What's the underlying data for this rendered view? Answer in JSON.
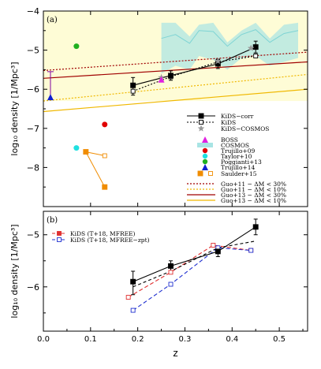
{
  "chart_data": [
    {
      "panel_label": "(a)",
      "type": "scatter",
      "ylabel": "log₁₀ density [1/Mpc³]",
      "xlim": [
        0.0,
        0.56
      ],
      "ylim": [
        -9.0,
        -4.0
      ],
      "yticks": [
        "−4",
        "−5",
        "−6",
        "−7",
        "−8"
      ],
      "shaded_region": {
        "y_above": -6.3,
        "color": "#fefcd6"
      },
      "cosmos_band": {
        "x": [
          0.25,
          0.28,
          0.31,
          0.33,
          0.36,
          0.39,
          0.42,
          0.45,
          0.48,
          0.51,
          0.54
        ],
        "upper": [
          -4.3,
          -4.3,
          -4.65,
          -4.35,
          -4.3,
          -4.8,
          -4.5,
          -4.3,
          -4.7,
          -4.35,
          -4.3
        ],
        "lower": [
          -5.6,
          -5.4,
          -5.5,
          -5.15,
          -5.25,
          -5.5,
          -5.2,
          -5.15,
          -5.4,
          -5.3,
          -5.2
        ],
        "color": "#a8e4e4"
      },
      "series": [
        {
          "name": "KiDS−corr",
          "style": "solid",
          "marker": "square-filled",
          "x": [
            0.19,
            0.27,
            0.37,
            0.45
          ],
          "y": [
            -5.9,
            -5.65,
            -5.35,
            -4.92
          ],
          "yerr_up": [
            0.2,
            0.12,
            0.12,
            0.15
          ],
          "yerr_down": [
            0.25,
            0.12,
            0.12,
            0.15
          ]
        },
        {
          "name": "KiDS",
          "style": "dotted",
          "marker": "square-open",
          "x": [
            0.19,
            0.27,
            0.37,
            0.45
          ],
          "y": [
            -6.05,
            -5.68,
            -5.3,
            -5.15
          ]
        },
        {
          "name": "KiDS−COSMOS",
          "marker": "star-gray",
          "x": [
            0.25,
            0.37,
            0.44
          ],
          "y": [
            -5.7,
            -5.28,
            -4.95
          ]
        },
        {
          "name": "BOSS",
          "marker": "triangle-magenta",
          "x": [
            0.25
          ],
          "y": [
            -5.75
          ]
        },
        {
          "name": "COSMOS",
          "marker": "band-cyan"
        },
        {
          "name": "Trujillo+09",
          "marker": "circle-red",
          "x": [
            0.13
          ],
          "y": [
            -6.9
          ]
        },
        {
          "name": "Taylor+10",
          "marker": "circle-cyan",
          "x": [
            0.07
          ],
          "y": [
            -7.5
          ]
        },
        {
          "name": "Poggianti+13",
          "marker": "circle-green",
          "x": [
            0.07
          ],
          "y": [
            -4.9
          ]
        },
        {
          "name": "Trujillo+14",
          "marker": "triangle-blue",
          "x": [
            0.015
          ],
          "y": [
            -6.2
          ],
          "yrange": [
            -6.2,
            -5.55
          ]
        },
        {
          "name": "Saulder+15",
          "marker": "square-orange",
          "x_filled": [
            0.09,
            0.13
          ],
          "y_filled": [
            -7.6,
            -8.5
          ],
          "x_open": [
            0.13
          ],
          "y_open": [
            -7.7
          ]
        },
        {
          "name": "Guo+11 − ΔM < 30%",
          "style": "dotted",
          "color": "#a00000",
          "y_at_0": -5.52,
          "y_at_056": -5.05
        },
        {
          "name": "Guo+11 − ΔM < 10%",
          "style": "dotted",
          "color": "#f0b800",
          "y_at_0": -6.3,
          "y_at_056": -5.62
        },
        {
          "name": "Guo+13 − ΔM < 30%",
          "style": "solid",
          "color": "#a00000",
          "y_at_0": -5.72,
          "y_at_056": -5.3
        },
        {
          "name": "Guo+13 − ΔM < 10%",
          "style": "solid",
          "color": "#f0b800",
          "y_at_0": -6.57,
          "y_at_056": -6.0
        }
      ]
    },
    {
      "panel_label": "(b)",
      "type": "line",
      "xlabel": "z",
      "ylabel": "log₁₀ density [1/Mpc³]",
      "xlim": [
        0.0,
        0.56
      ],
      "ylim": [
        -6.85,
        -4.55
      ],
      "xticks": [
        "0.0",
        "0.1",
        "0.2",
        "0.3",
        "0.4",
        "0.5"
      ],
      "yticks": [
        "−5",
        "−6"
      ],
      "series": [
        {
          "name": "",
          "style": "solid",
          "color": "#000000",
          "marker": "square-filled",
          "x": [
            0.19,
            0.27,
            0.37,
            0.45
          ],
          "y": [
            -5.9,
            -5.6,
            -5.32,
            -4.85
          ],
          "yerr_up": [
            0.2,
            0.1,
            0.1,
            0.15
          ],
          "yerr_down": [
            0.25,
            0.1,
            0.1,
            0.15
          ]
        },
        {
          "name": "",
          "style": "dashed",
          "color": "#000000",
          "x": [
            0.19,
            0.27,
            0.37,
            0.45
          ],
          "y": [
            -6.0,
            -5.7,
            -5.25,
            -5.12
          ]
        },
        {
          "name": "KiDS (T+18, MFREE)",
          "style": "dashed",
          "color": "#e03030",
          "marker": "square-red",
          "x": [
            0.18,
            0.27,
            0.36,
            0.44
          ],
          "y": [
            -6.2,
            -5.72,
            -5.2,
            -5.3
          ]
        },
        {
          "name": "KiDS (T+18, MFREE−zpt)",
          "style": "dashed",
          "color": "#2030d0",
          "marker": "square-blue",
          "x": [
            0.19,
            0.27,
            0.37,
            0.44
          ],
          "y": [
            -6.45,
            -5.95,
            -5.25,
            -5.3
          ]
        }
      ]
    }
  ]
}
